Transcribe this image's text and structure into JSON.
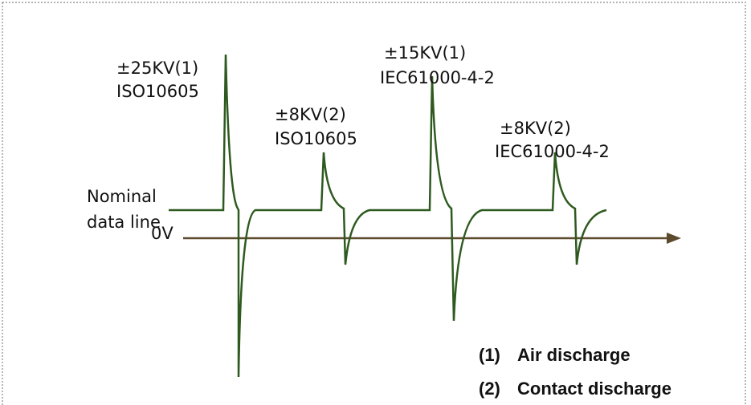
{
  "labels": {
    "pulses": [
      {
        "level": "±25KV(1)",
        "standard": "ISO10605"
      },
      {
        "level": "±8KV(2)",
        "standard": "ISO10605"
      },
      {
        "level": "±15KV(1)",
        "standard": "IEC61000-4-2"
      },
      {
        "level": "±8KV(2)",
        "standard": "IEC61000-4-2"
      }
    ],
    "nominal": [
      "Nominal",
      "data line"
    ],
    "zero": "0V",
    "legend": [
      {
        "marker": "(1)",
        "text": "Air discharge"
      },
      {
        "marker": "(2)",
        "text": "Contact discharge"
      }
    ]
  }
}
